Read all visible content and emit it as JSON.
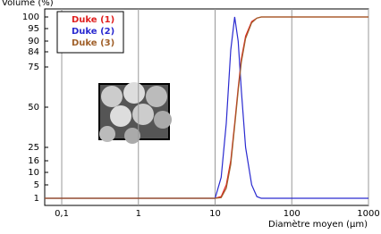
{
  "chart_data": {
    "type": "line",
    "x_label": "Diamètre moyen (µm)",
    "y_label": "Volume (%)",
    "xscale": "log",
    "xlim": [
      0.06,
      1000
    ],
    "xticks": [
      {
        "value": 0.1,
        "label": "0,1"
      },
      1,
      10,
      100,
      1000
    ],
    "ylim": [
      1,
      100
    ],
    "yticks": [
      1,
      5,
      10,
      16,
      25,
      50,
      75,
      84,
      90,
      95,
      100
    ],
    "grid": true,
    "legend": "upper left",
    "x": [
      0.06,
      1,
      5,
      10,
      12,
      14,
      16,
      18,
      20,
      22,
      25,
      30,
      35,
      40,
      60,
      100,
      1000
    ],
    "series": [
      {
        "name": "Duke (1)",
        "color": "#e02020",
        "values": [
          1,
          1,
          1,
          1,
          1.5,
          5,
          16,
          40,
          62,
          80,
          92,
          98,
          99.5,
          100,
          100,
          100,
          100
        ]
      },
      {
        "name": "Duke (2)",
        "color": "#2a2ad0",
        "values": [
          1,
          1,
          1,
          1,
          8,
          40,
          85,
          100,
          90,
          60,
          25,
          5,
          1.5,
          1,
          1,
          1,
          1
        ]
      },
      {
        "name": "Duke (3)",
        "color": "#a0602a",
        "values": [
          1,
          1,
          1,
          1,
          1.2,
          4,
          14,
          38,
          60,
          78,
          91,
          97.5,
          99.5,
          100,
          100,
          100,
          100
        ]
      }
    ]
  }
}
